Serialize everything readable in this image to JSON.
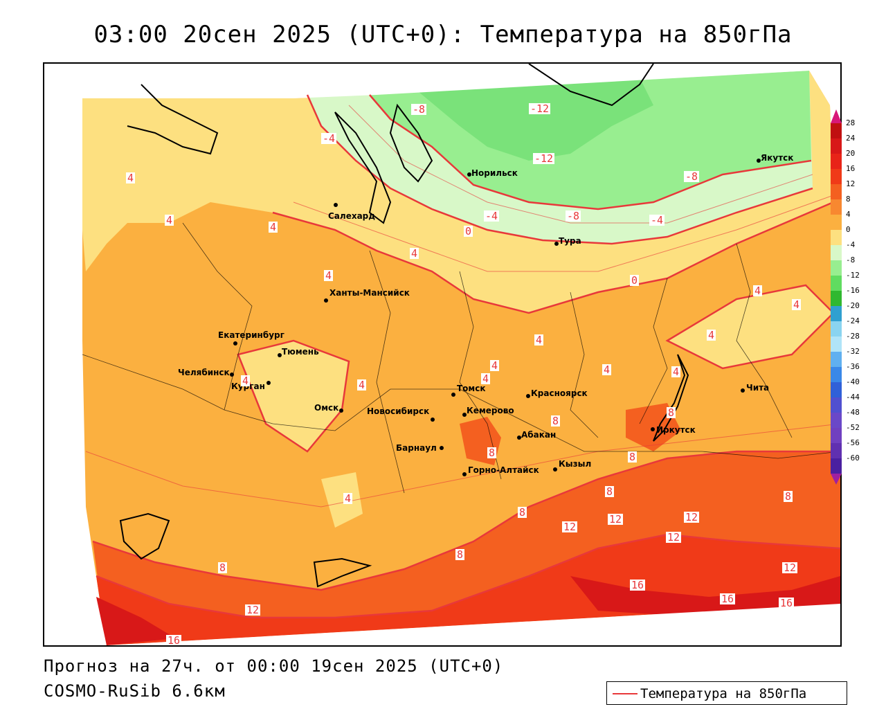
{
  "title": "03:00 20сен 2025 (UTC+0): Температура на 850гПа",
  "footer": {
    "forecast": "Прогноз на 27ч. от 00:00 19сен 2025 (UTC+0)",
    "model": "COSMO-RuSib 6.6км"
  },
  "legend": {
    "label": "Температура на 850гПа",
    "color": "#e8383a"
  },
  "colorbar": {
    "labels": [
      "28",
      "24",
      "20",
      "16",
      "12",
      "8",
      "4",
      "0",
      "-4",
      "-8",
      "-12",
      "-16",
      "-20",
      "-24",
      "-28",
      "-32",
      "-36",
      "-40",
      "-44",
      "-48",
      "-52",
      "-56",
      "-60"
    ],
    "colors": [
      "#c01010",
      "#d81818",
      "#e82418",
      "#f03a18",
      "#f46020",
      "#f88830",
      "#fbb040",
      "#fde080",
      "#d8f8c8",
      "#98ee90",
      "#60dc60",
      "#30b830",
      "#30a0d0",
      "#8ad4f0",
      "#b0e4f8",
      "#60b0f0",
      "#3a88e8",
      "#3060d8",
      "#5050d0",
      "#6a48c8",
      "#7040c0",
      "#6030b0",
      "#4a20a0"
    ],
    "top_arrow": "#d81878",
    "bottom_arrow": "#a020a0"
  },
  "cities": [
    {
      "name": "Салехард"
    },
    {
      "name": "Норильск"
    },
    {
      "name": "Якутск"
    },
    {
      "name": "Тура"
    },
    {
      "name": "Ханты-Мансийск"
    },
    {
      "name": "Екатеринбург"
    },
    {
      "name": "Тюмень"
    },
    {
      "name": "Челябинск"
    },
    {
      "name": "Курган"
    },
    {
      "name": "Омск"
    },
    {
      "name": "Новосибирск"
    },
    {
      "name": "Томск"
    },
    {
      "name": "Кемерово"
    },
    {
      "name": "Красноярск"
    },
    {
      "name": "Барнаул"
    },
    {
      "name": "Абакан"
    },
    {
      "name": "Горно-Алтайск"
    },
    {
      "name": "Кызыл"
    },
    {
      "name": "Иркутск"
    },
    {
      "name": "Чита"
    }
  ],
  "contour_labels": [
    "4",
    "4",
    "4",
    "4",
    "4",
    "4",
    "4",
    "4",
    "4",
    "4",
    "4",
    "4",
    "4",
    "4",
    "4",
    "4",
    "-4",
    "-4",
    "-4",
    "-8",
    "-8",
    "-8",
    "-12",
    "-12",
    "0",
    "0",
    "8",
    "8",
    "8",
    "8",
    "8",
    "8",
    "8",
    "8",
    "8",
    "12",
    "12",
    "12",
    "12",
    "12",
    "12",
    "16",
    "16",
    "16",
    "16"
  ]
}
